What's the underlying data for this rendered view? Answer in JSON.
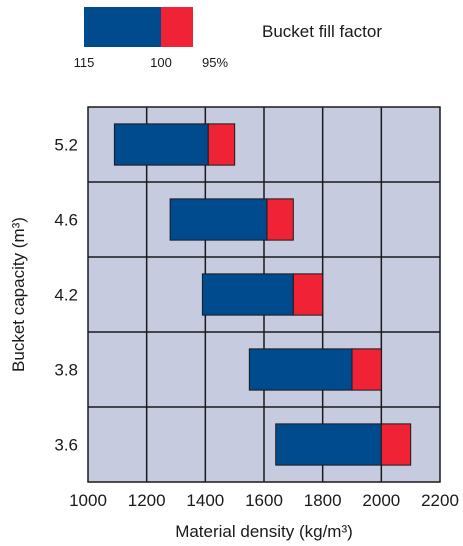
{
  "chart_data": {
    "type": "bar",
    "title": "",
    "xlabel": "Material density (kg/m³)",
    "ylabel": "Bucket capacity (m³)",
    "xlim": [
      1000,
      2200
    ],
    "x_ticks": [
      "1000",
      "1200",
      "1400",
      "1600",
      "1800",
      "2000",
      "2200"
    ],
    "categories": [
      "5.2",
      "4.6",
      "4.2",
      "3.8",
      "3.6"
    ],
    "series": [
      {
        "name": "115",
        "color": "#004b8d",
        "ranges": [
          [
            1090,
            1410
          ],
          [
            1280,
            1610
          ],
          [
            1390,
            1700
          ],
          [
            1550,
            1900
          ],
          [
            1640,
            2000
          ]
        ]
      },
      {
        "name": "95%",
        "color": "#ef2335",
        "ranges": [
          [
            1410,
            1500
          ],
          [
            1610,
            1700
          ],
          [
            1700,
            1800
          ],
          [
            1900,
            2000
          ],
          [
            2000,
            2100
          ]
        ]
      }
    ],
    "legend": {
      "title": "Bucket fill factor",
      "labels": [
        "115",
        "100",
        "95%"
      ],
      "position": "top"
    },
    "grid": true,
    "plot_background": "#c6cbe0"
  }
}
